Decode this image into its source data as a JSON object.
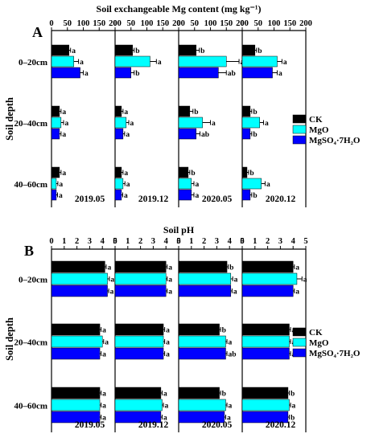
{
  "chart_data": [
    {
      "type": "bar",
      "panel_label": "A",
      "title": "Soil exchangeable Mg content (mg kg⁻¹)",
      "ylabel": "Soil depth",
      "categories": [
        "0–20cm",
        "20–40cm",
        "40–60cm"
      ],
      "series_names": [
        "CK",
        "MgO",
        "MgSO₄·7H₂O"
      ],
      "colors": [
        "#000000",
        "#00ffff",
        "#0000ff"
      ],
      "xlim": [
        0,
        200
      ],
      "ticks": [
        "0",
        "50",
        "100",
        "150",
        "200"
      ],
      "subpanels": [
        {
          "name": "2019.05",
          "values": [
            [
              55,
              70,
              90
            ],
            [
              25,
              30,
              25
            ],
            [
              25,
              15,
              15
            ]
          ],
          "errors": [
            [
              5,
              15,
              10
            ],
            [
              5,
              8,
              5
            ],
            [
              5,
              5,
              4
            ]
          ],
          "letters": [
            [
              "a",
              "a",
              "a"
            ],
            [
              "a",
              "a",
              "a"
            ],
            [
              "a",
              "a",
              "a"
            ]
          ]
        },
        {
          "name": "2019.12",
          "values": [
            [
              55,
              110,
              50
            ],
            [
              20,
              35,
              25
            ],
            [
              20,
              25,
              20
            ]
          ],
          "errors": [
            [
              5,
              20,
              10
            ],
            [
              5,
              8,
              5
            ],
            [
              5,
              6,
              4
            ]
          ],
          "letters": [
            [
              "b",
              "a",
              "b"
            ],
            [
              "a",
              "a",
              "a"
            ],
            [
              "a",
              "a",
              "a"
            ]
          ]
        },
        {
          "name": "2020.05",
          "values": [
            [
              55,
              150,
              125
            ],
            [
              35,
              75,
              55
            ],
            [
              30,
              40,
              40
            ]
          ],
          "errors": [
            [
              10,
              40,
              25
            ],
            [
              10,
              25,
              12
            ],
            [
              5,
              8,
              8
            ]
          ],
          "letters": [
            [
              "b",
              "a",
              "ab"
            ],
            [
              "b",
              "a",
              "ab"
            ],
            [
              "b",
              "a",
              "a"
            ]
          ]
        },
        {
          "name": "2020.12",
          "values": [
            [
              40,
              110,
              95
            ],
            [
              25,
              55,
              25
            ],
            [
              15,
              60,
              25
            ]
          ],
          "errors": [
            [
              5,
              15,
              15
            ],
            [
              5,
              12,
              5
            ],
            [
              5,
              12,
              5
            ]
          ],
          "letters": [
            [
              "b",
              "a",
              "a"
            ],
            [
              "b",
              "a",
              "b"
            ],
            [
              "b",
              "a",
              "b"
            ]
          ]
        }
      ]
    },
    {
      "type": "bar",
      "panel_label": "B",
      "title": "Soil pH",
      "ylabel": "Soil depth",
      "categories": [
        "0–20cm",
        "20–40cm",
        "40–60cm"
      ],
      "series_names": [
        "CK",
        "MgO",
        "MgSO₄·7H₂O"
      ],
      "colors": [
        "#000000",
        "#00ffff",
        "#0000ff"
      ],
      "xlim": [
        0,
        5
      ],
      "ticks": [
        "0",
        "1",
        "2",
        "3",
        "4",
        "5"
      ],
      "subpanels": [
        {
          "name": "2019.05",
          "values": [
            [
              4.2,
              4.4,
              4.4
            ],
            [
              3.8,
              4.0,
              3.8
            ],
            [
              3.8,
              3.8,
              3.8
            ]
          ],
          "errors": [
            [
              0.1,
              0.15,
              0.1
            ],
            [
              0.1,
              0.1,
              0.1
            ],
            [
              0.1,
              0.1,
              0.1
            ]
          ],
          "letters": [
            [
              "a",
              "a",
              "a"
            ],
            [
              "a",
              "a",
              "a"
            ],
            [
              "a",
              "a",
              "a"
            ]
          ]
        },
        {
          "name": "2019.12",
          "values": [
            [
              4.0,
              4.0,
              4.0
            ],
            [
              3.8,
              3.8,
              3.8
            ],
            [
              3.6,
              3.7,
              3.6
            ]
          ],
          "errors": [
            [
              0.1,
              0.1,
              0.1
            ],
            [
              0.1,
              0.1,
              0.1
            ],
            [
              0.1,
              0.1,
              0.1
            ]
          ],
          "letters": [
            [
              "a",
              "a",
              "a"
            ],
            [
              "a",
              "a",
              "a"
            ],
            [
              "a",
              "a",
              "a"
            ]
          ]
        },
        {
          "name": "2020.05",
          "values": [
            [
              3.8,
              4.1,
              4.1
            ],
            [
              3.2,
              3.7,
              3.7
            ],
            [
              3.2,
              3.7,
              3.6
            ]
          ],
          "errors": [
            [
              0.1,
              0.15,
              0.1
            ],
            [
              0.1,
              0.1,
              0.1
            ],
            [
              0.1,
              0.1,
              0.1
            ]
          ],
          "letters": [
            [
              "b",
              "a",
              "a"
            ],
            [
              "b",
              "a",
              "ab"
            ],
            [
              "b",
              "a",
              "a"
            ]
          ]
        },
        {
          "name": "2020.12",
          "values": [
            [
              4.0,
              4.3,
              4.0
            ],
            [
              3.7,
              3.7,
              3.7
            ],
            [
              3.6,
              3.7,
              3.6
            ]
          ],
          "errors": [
            [
              0.1,
              0.4,
              0.1
            ],
            [
              0.1,
              0.1,
              0.1
            ],
            [
              0.1,
              0.1,
              0.1
            ]
          ],
          "letters": [
            [
              "a",
              "a",
              "a"
            ],
            [
              "a",
              "a",
              "a"
            ],
            [
              "b",
              "a",
              "b"
            ]
          ]
        }
      ]
    }
  ]
}
